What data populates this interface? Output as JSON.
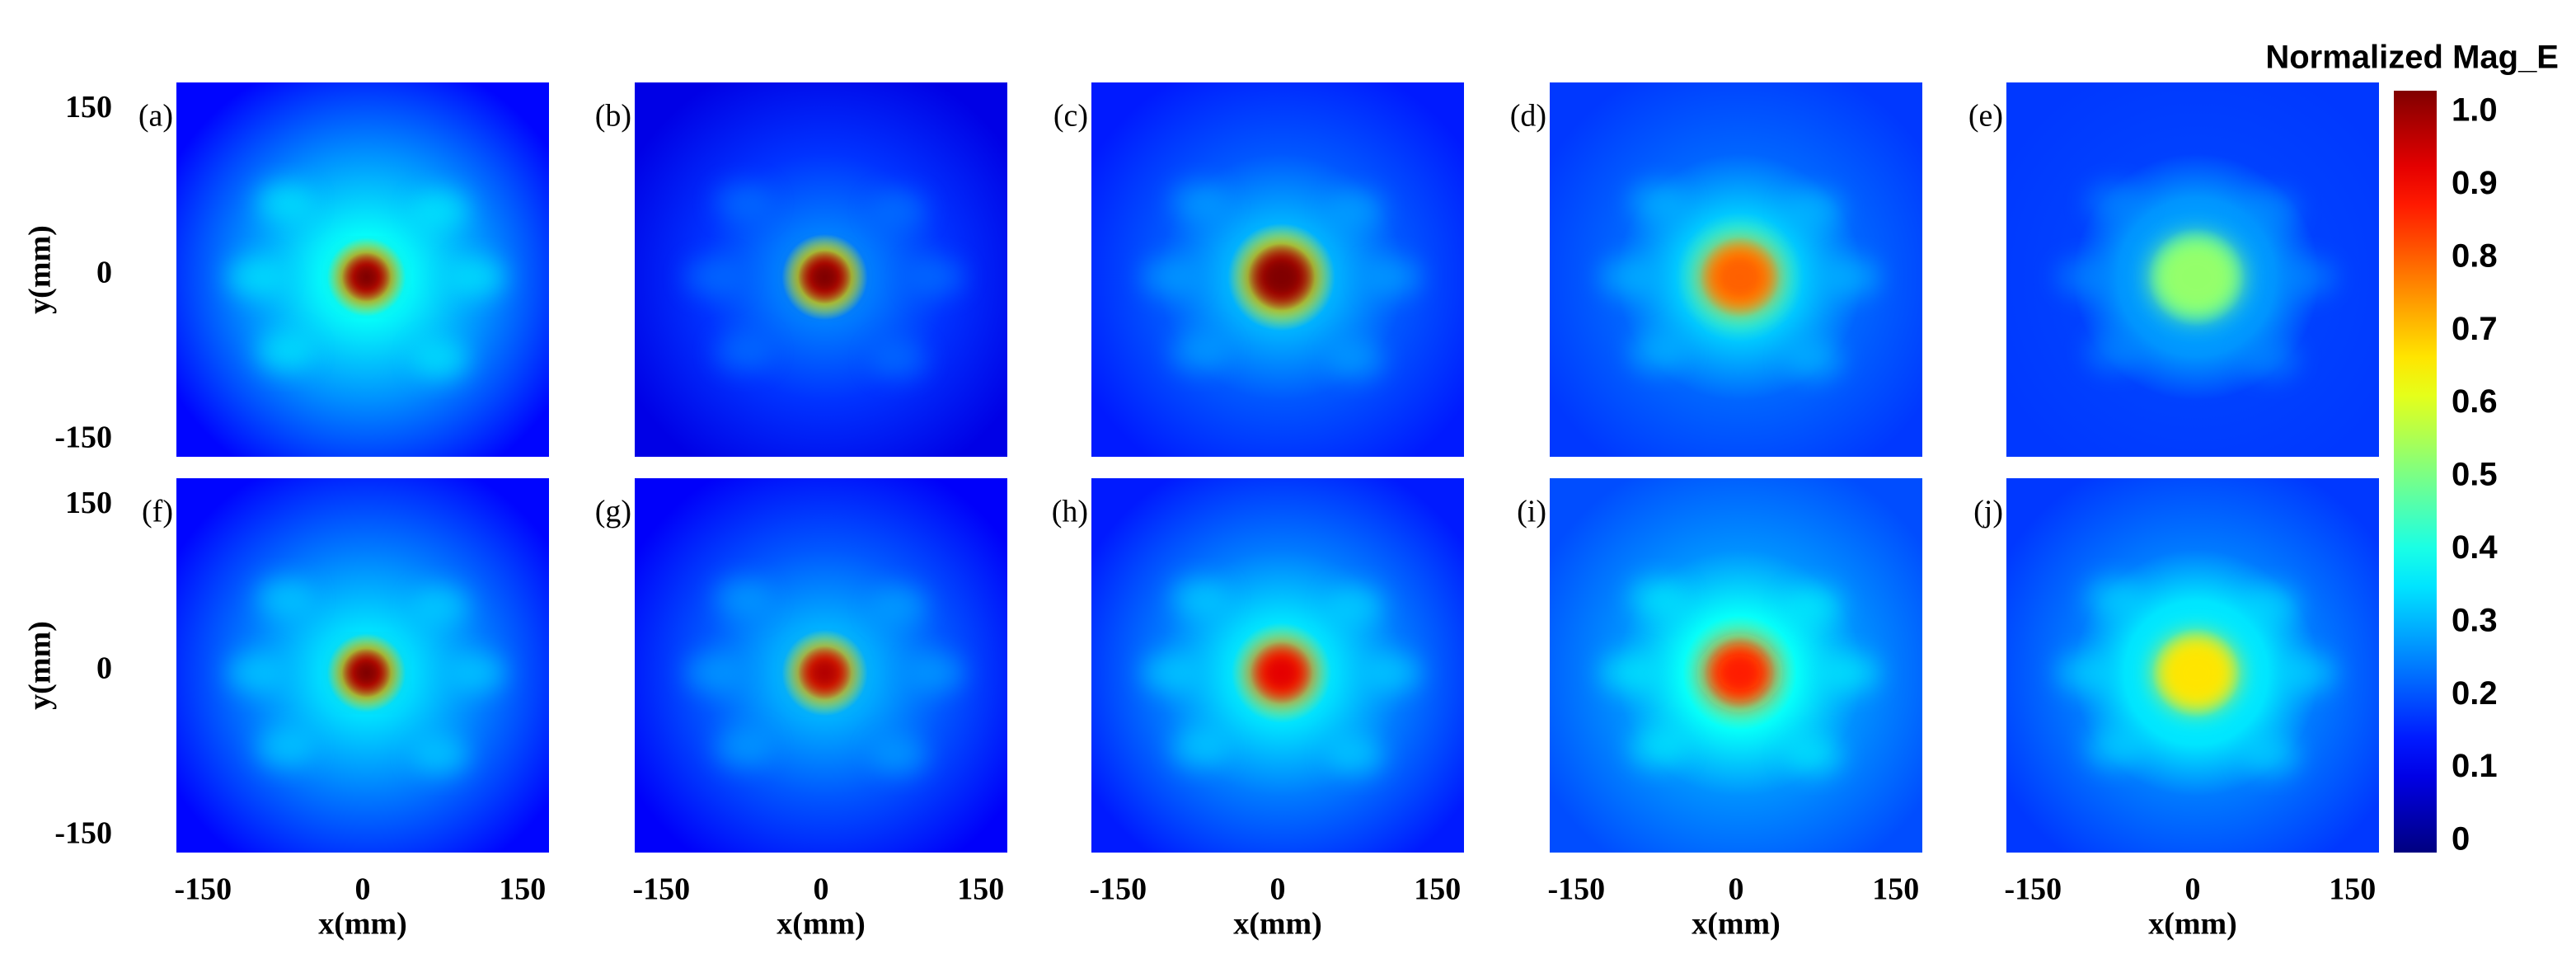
{
  "chart_data": {
    "type": "heatmap-grid",
    "panels": [
      "(a)",
      "(b)",
      "(c)",
      "(d)",
      "(e)",
      "(f)",
      "(g)",
      "(h)",
      "(i)",
      "(j)"
    ],
    "xlabel": "x(mm)",
    "ylabel": "y(mm)",
    "xlim": [
      -175,
      175
    ],
    "ylim": [
      -165,
      175
    ],
    "xticks": [
      -150,
      0,
      150
    ],
    "yticks": [
      -150,
      0,
      150
    ],
    "colorbar": {
      "title": "Normalized Mag_E",
      "lim": [
        0,
        1
      ],
      "ticks": [
        0,
        0.1,
        0.2,
        0.3,
        0.4,
        0.5,
        0.6,
        0.7,
        0.8,
        0.9,
        {
          "value": 1,
          "label": "1.0"
        }
      ]
    }
  }
}
